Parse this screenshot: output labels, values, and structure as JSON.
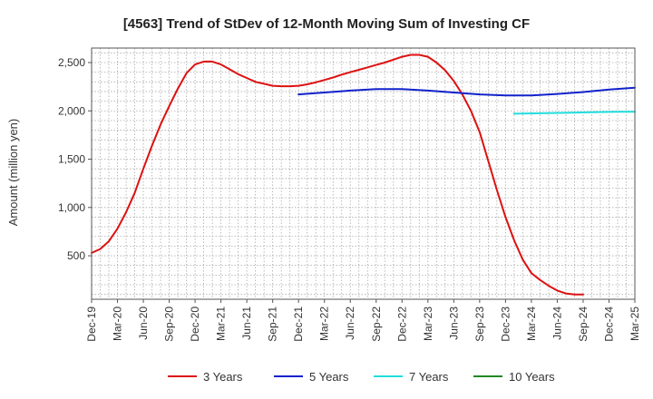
{
  "chart_data": {
    "type": "line",
    "title": "[4563]  Trend of StDev of 12-Month Moving Sum of Investing CF",
    "xlabel": "",
    "ylabel": "Amount (million yen)",
    "ylim": [
      50,
      2650
    ],
    "yticks": [
      500,
      1000,
      1500,
      2000,
      2500
    ],
    "ytick_labels": [
      "500",
      "1,000",
      "1,500",
      "2,000",
      "2,500"
    ],
    "xrange": [
      "2019-12",
      "2025-03"
    ],
    "xtick_labels": [
      "Dec-19",
      "Mar-20",
      "Jun-20",
      "Sep-20",
      "Dec-20",
      "Mar-21",
      "Jun-21",
      "Sep-21",
      "Dec-21",
      "Mar-22",
      "Jun-22",
      "Sep-22",
      "Dec-22",
      "Mar-23",
      "Jun-23",
      "Sep-23",
      "Dec-23",
      "Mar-24",
      "Jun-24",
      "Sep-24",
      "Dec-24",
      "Mar-25"
    ],
    "grid": true,
    "legend_position": "bottom",
    "series": [
      {
        "name": "3 Years",
        "color": "#dd1111",
        "points": [
          [
            "2019-12",
            530
          ],
          [
            "2020-01",
            570
          ],
          [
            "2020-02",
            650
          ],
          [
            "2020-03",
            780
          ],
          [
            "2020-04",
            950
          ],
          [
            "2020-05",
            1150
          ],
          [
            "2020-06",
            1400
          ],
          [
            "2020-07",
            1640
          ],
          [
            "2020-08",
            1860
          ],
          [
            "2020-09",
            2050
          ],
          [
            "2020-10",
            2230
          ],
          [
            "2020-11",
            2390
          ],
          [
            "2020-12",
            2480
          ],
          [
            "2021-01",
            2510
          ],
          [
            "2021-02",
            2510
          ],
          [
            "2021-03",
            2480
          ],
          [
            "2021-04",
            2430
          ],
          [
            "2021-05",
            2380
          ],
          [
            "2021-06",
            2340
          ],
          [
            "2021-07",
            2300
          ],
          [
            "2021-08",
            2280
          ],
          [
            "2021-09",
            2260
          ],
          [
            "2021-10",
            2255
          ],
          [
            "2021-11",
            2255
          ],
          [
            "2021-12",
            2260
          ],
          [
            "2022-01",
            2275
          ],
          [
            "2022-02",
            2295
          ],
          [
            "2022-03",
            2320
          ],
          [
            "2022-04",
            2345
          ],
          [
            "2022-05",
            2375
          ],
          [
            "2022-06",
            2400
          ],
          [
            "2022-07",
            2425
          ],
          [
            "2022-08",
            2450
          ],
          [
            "2022-09",
            2475
          ],
          [
            "2022-10",
            2500
          ],
          [
            "2022-11",
            2530
          ],
          [
            "2022-12",
            2560
          ],
          [
            "2023-01",
            2580
          ],
          [
            "2023-02",
            2580
          ],
          [
            "2023-03",
            2560
          ],
          [
            "2023-04",
            2500
          ],
          [
            "2023-05",
            2420
          ],
          [
            "2023-06",
            2310
          ],
          [
            "2023-07",
            2170
          ],
          [
            "2023-08",
            2000
          ],
          [
            "2023-09",
            1780
          ],
          [
            "2023-10",
            1480
          ],
          [
            "2023-11",
            1180
          ],
          [
            "2023-12",
            900
          ],
          [
            "2024-01",
            660
          ],
          [
            "2024-02",
            460
          ],
          [
            "2024-03",
            320
          ],
          [
            "2024-04",
            250
          ],
          [
            "2024-05",
            190
          ],
          [
            "2024-06",
            140
          ],
          [
            "2024-07",
            110
          ],
          [
            "2024-08",
            100
          ],
          [
            "2024-09",
            100
          ]
        ]
      },
      {
        "name": "5 Years",
        "color": "#1122cc",
        "points": [
          [
            "2021-12",
            2170
          ],
          [
            "2022-03",
            2190
          ],
          [
            "2022-06",
            2210
          ],
          [
            "2022-09",
            2225
          ],
          [
            "2022-12",
            2225
          ],
          [
            "2023-03",
            2210
          ],
          [
            "2023-06",
            2190
          ],
          [
            "2023-09",
            2170
          ],
          [
            "2023-12",
            2160
          ],
          [
            "2024-03",
            2160
          ],
          [
            "2024-06",
            2175
          ],
          [
            "2024-09",
            2195
          ],
          [
            "2024-12",
            2220
          ],
          [
            "2025-03",
            2240
          ]
        ]
      },
      {
        "name": "7 Years",
        "color": "#22dddd",
        "points": [
          [
            "2024-01",
            1970
          ],
          [
            "2024-04",
            1975
          ],
          [
            "2024-07",
            1980
          ],
          [
            "2024-10",
            1985
          ],
          [
            "2025-01",
            1990
          ],
          [
            "2025-03",
            1990
          ]
        ]
      },
      {
        "name": "10 Years",
        "color": "#228822",
        "points": []
      }
    ]
  }
}
